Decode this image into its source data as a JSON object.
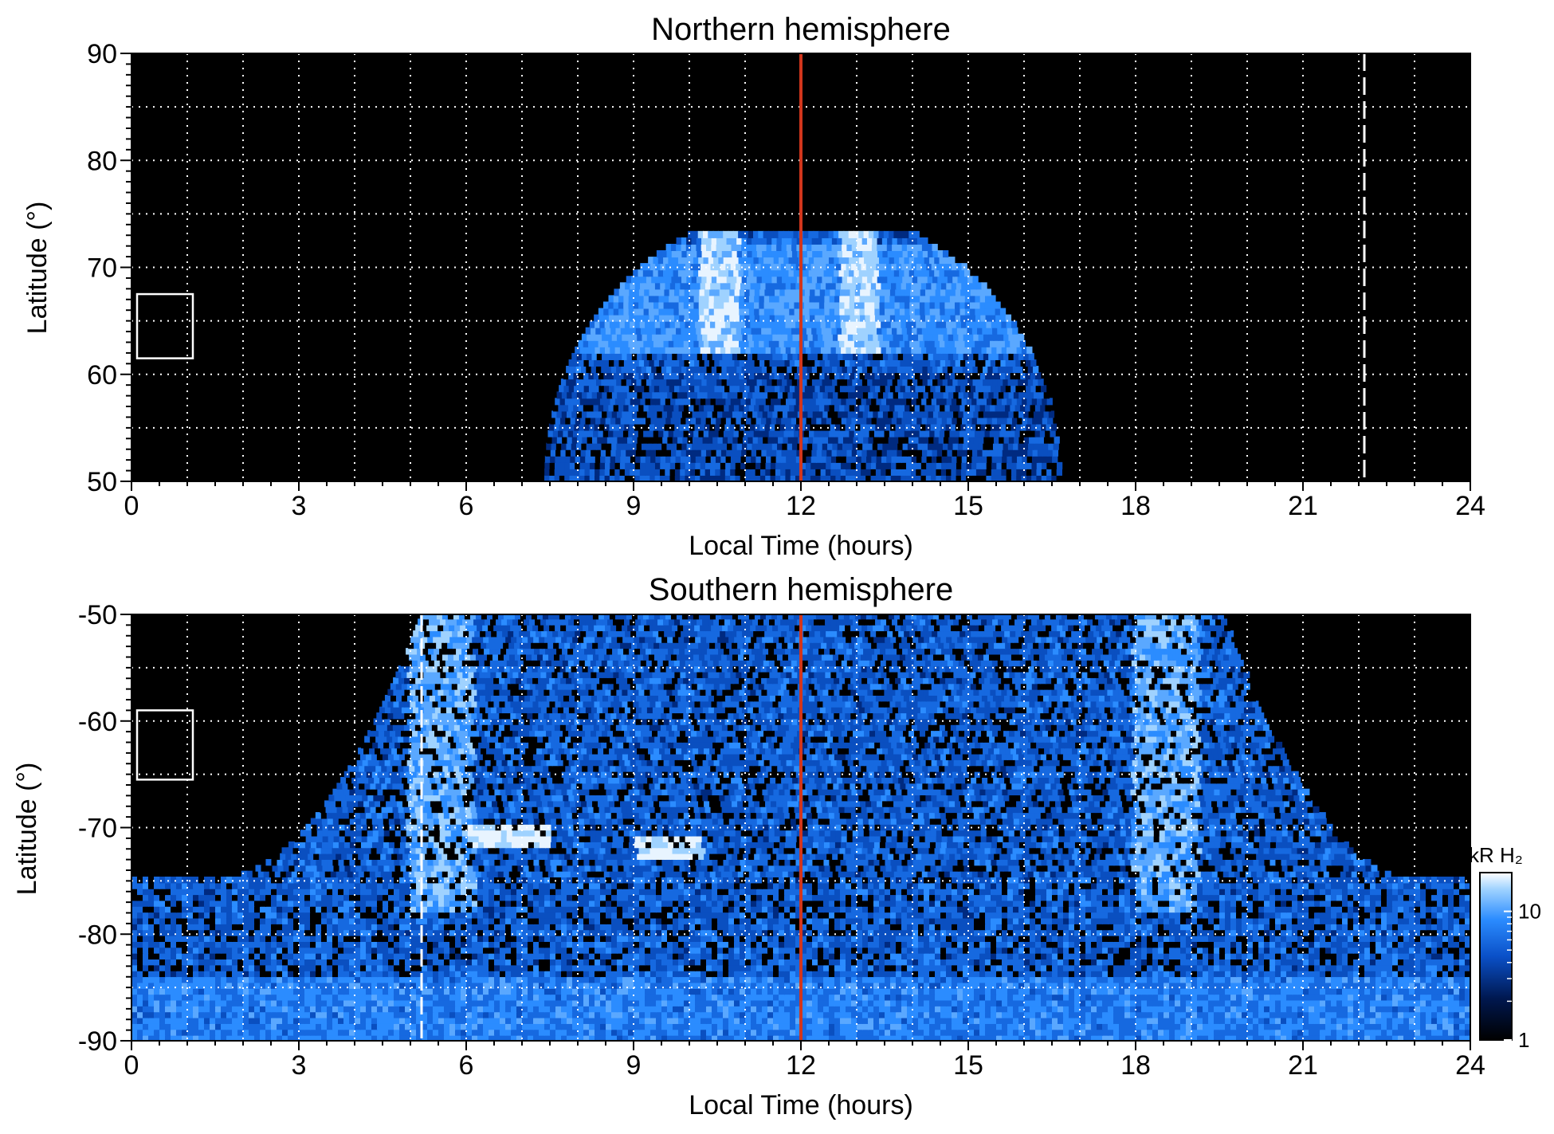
{
  "chart_data": [
    {
      "type": "heatmap",
      "title": "Northern hemisphere",
      "xlabel": "Local Time (hours)",
      "ylabel": "Latitude (°)",
      "xlim": [
        0,
        24
      ],
      "ylim": [
        50,
        90
      ],
      "x_ticks": [
        0,
        3,
        6,
        9,
        12,
        15,
        18,
        21,
        24
      ],
      "x_tick_labels": [
        "0",
        "3",
        "6",
        "9",
        "12",
        "15",
        "18",
        "21",
        "24"
      ],
      "y_ticks": [
        50,
        60,
        70,
        80,
        90
      ],
      "y_tick_labels": [
        "50",
        "60",
        "70",
        "80",
        "90"
      ],
      "grid": true,
      "grid_x_step_hours": 1,
      "grid_y_step_deg": 5,
      "emission_region": {
        "center_local_time": 12,
        "lt_half_width_at_50": 4.6,
        "lt_half_width_at_70": 3.0,
        "max_latitude": 73,
        "auroral_oval_latitude_range": [
          62,
          72
        ],
        "bright_arcs_local_time": [
          10.5,
          13.0
        ]
      },
      "vertical_lines": [
        {
          "x": 12,
          "color": "#d2361c",
          "style": "solid"
        },
        {
          "x": 22.1,
          "color": "#ffffff",
          "style": "dashed"
        }
      ],
      "box": {
        "x": [
          0.1,
          1.1
        ],
        "y": [
          61.5,
          67.5
        ],
        "color": "#ffffff"
      }
    },
    {
      "type": "heatmap",
      "title": "Southern hemisphere",
      "xlabel": "Local Time (hours)",
      "ylabel": "Latitude (°)",
      "xlim": [
        0,
        24
      ],
      "ylim": [
        -90,
        -50
      ],
      "x_ticks": [
        0,
        3,
        6,
        9,
        12,
        15,
        18,
        21,
        24
      ],
      "x_tick_labels": [
        "0",
        "3",
        "6",
        "9",
        "12",
        "15",
        "18",
        "21",
        "24"
      ],
      "y_ticks": [
        -90,
        -80,
        -70,
        -60,
        -50
      ],
      "y_tick_labels": [
        "-90",
        "-80",
        "-70",
        "-60",
        "-50"
      ],
      "grid": true,
      "grid_x_step_hours": 1,
      "grid_y_step_deg": 5,
      "emission_region": {
        "lt_range_at_minus50": [
          5.2,
          19.5
        ],
        "lt_range_at_minus75": [
          1.5,
          23.0
        ],
        "full_coverage_below_latitude": -75,
        "auroral_oval_local_time": [
          5.5,
          18.5
        ],
        "bright_patches": [
          {
            "x": [
              6.0,
              7.5
            ],
            "y": [
              -72,
              -70
            ]
          },
          {
            "x": [
              9.0,
              10.2
            ],
            "y": [
              -73,
              -71
            ]
          }
        ]
      },
      "vertical_lines": [
        {
          "x": 12,
          "color": "#d2361c",
          "style": "solid"
        },
        {
          "x": 5.2,
          "color": "#ffffff",
          "style": "dashed"
        }
      ],
      "box": {
        "x": [
          0.1,
          1.1
        ],
        "y": [
          -65.5,
          -59.0
        ],
        "color": "#ffffff"
      },
      "colorbar": {
        "label": "kR H₂",
        "scale": "log",
        "range": [
          1,
          20
        ],
        "ticks": [
          1,
          10
        ],
        "tick_labels": [
          "1",
          "10"
        ],
        "colormap": [
          "#000000",
          "#001850",
          "#0a50c8",
          "#2b8cff",
          "#9fd2ff",
          "#ffffff"
        ]
      }
    }
  ]
}
